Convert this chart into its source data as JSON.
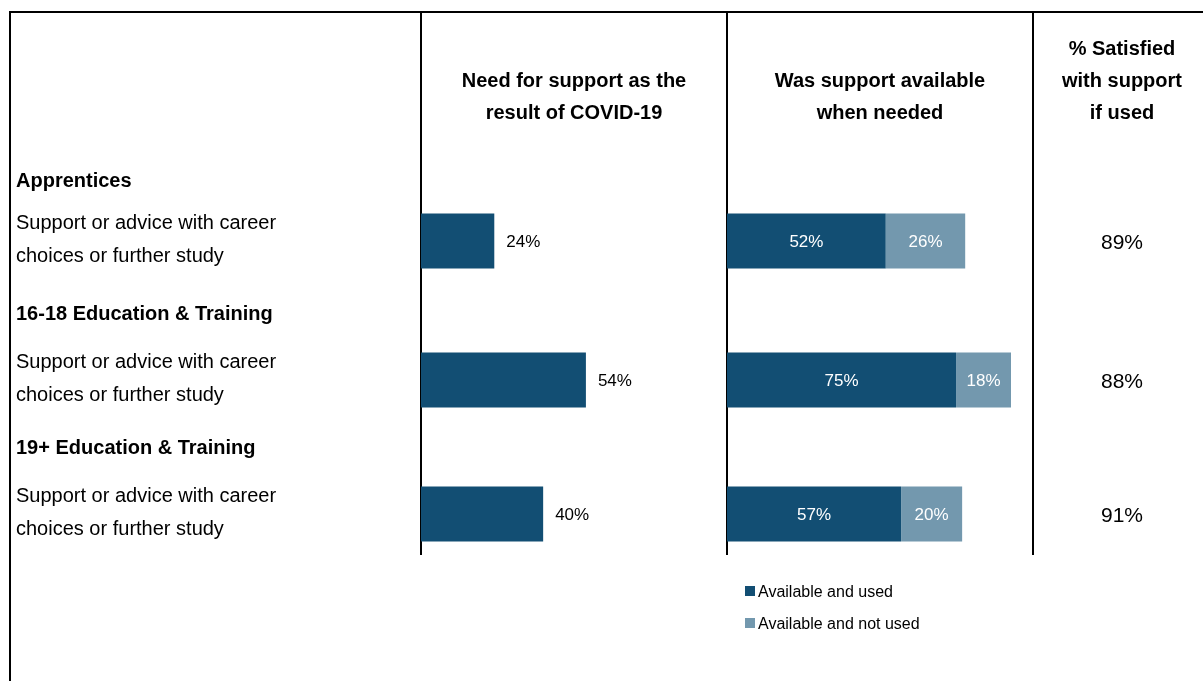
{
  "chart_data": [
    {
      "type": "bar",
      "orientation": "horizontal",
      "title": "Need for support as the result of COVID-19",
      "categories": [
        "Support or advice with career choices or further study",
        "Support or advice with career choices or further study",
        "Support or advice with career choices or further study"
      ],
      "annotations": [
        "Apprentices",
        "16-18 Education & Training",
        "19+ Education & Training"
      ],
      "values": [
        24,
        54,
        40
      ],
      "value_labels": [
        "24%",
        "54%",
        "40%"
      ],
      "color": "#124e73",
      "legend": false
    },
    {
      "type": "bar",
      "orientation": "horizontal",
      "stacked": true,
      "title": "Was support available when needed",
      "categories": [
        null,
        null,
        null
      ],
      "series": [
        {
          "name": "Available and used",
          "color": "#124e73",
          "values": [
            52,
            75,
            57
          ],
          "value_labels": [
            "52%",
            "75%",
            "57%"
          ]
        },
        {
          "name": "Available and not used",
          "color": "#7398ae",
          "values": [
            26,
            18,
            20
          ],
          "value_labels": [
            "26%",
            "18%",
            "20%"
          ]
        }
      ],
      "legend": "bottom"
    },
    {
      "type": "other",
      "title": "% Satisfied with support if used",
      "annotations": [
        "89%",
        "88%",
        "91%"
      ]
    }
  ]
}
